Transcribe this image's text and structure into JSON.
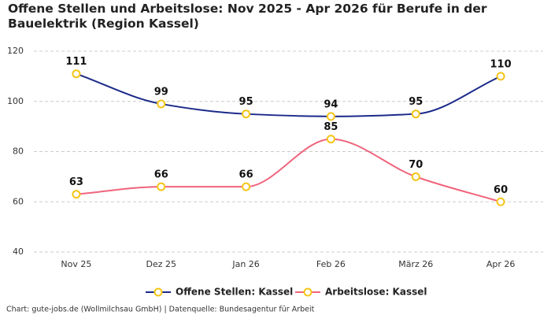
{
  "chart_data": {
    "type": "line",
    "title": "Offene Stellen und Arbeitslose: Nov 2025 - Apr 2026 für Berufe in der Bauelektrik (Region Kassel)",
    "categories": [
      "Nov 25",
      "Dez 25",
      "Jan 26",
      "Feb 26",
      "März 26",
      "Apr 26"
    ],
    "series": [
      {
        "name": "Offene Stellen: Kassel",
        "color": "#1b2a8a",
        "values": [
          111,
          99,
          95,
          94,
          95,
          110
        ]
      },
      {
        "name": "Arbeitslose: Kassel",
        "color": "#f0647c",
        "values": [
          63,
          66,
          66,
          85,
          70,
          60
        ]
      }
    ],
    "marker_color": "#f5c518",
    "ylim": [
      40,
      120
    ],
    "yticks": [
      40,
      60,
      80,
      100,
      120
    ],
    "grid": true,
    "source": "Chart: gute-jobs.de (Wollmilchsau GmbH) | Datenquelle: Bundesagentur für Arbeit"
  }
}
